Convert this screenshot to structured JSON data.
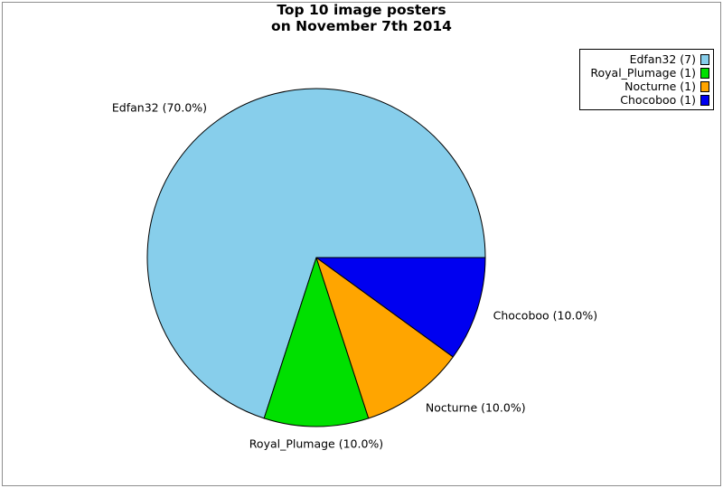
{
  "title": {
    "line1": "Top 10 image posters",
    "line2": "on November 7th 2014"
  },
  "chart_data": {
    "type": "pie",
    "title": "Top 10 image posters on November 7th 2014",
    "start_angle": 0,
    "direction": "counterclockwise",
    "legend_position": "top-right",
    "slices": [
      {
        "name": "Edfan32",
        "count": 7,
        "percent": 70.0,
        "color": "#87CEEB",
        "wedge_label": "Edfan32 (70.0%)",
        "legend_label": "Edfan32 (7)"
      },
      {
        "name": "Royal_Plumage",
        "count": 1,
        "percent": 10.0,
        "color": "#00E000",
        "wedge_label": "Royal_Plumage (10.0%)",
        "legend_label": "Royal_Plumage (1)"
      },
      {
        "name": "Nocturne",
        "count": 1,
        "percent": 10.0,
        "color": "#FFA500",
        "wedge_label": "Nocturne (10.0%)",
        "legend_label": "Nocturne (1)"
      },
      {
        "name": "Chocoboo",
        "count": 1,
        "percent": 10.0,
        "color": "#0000F0",
        "wedge_label": "Chocoboo (10.0%)",
        "legend_label": "Chocoboo (1)"
      }
    ],
    "outline_color": "#000000"
  }
}
